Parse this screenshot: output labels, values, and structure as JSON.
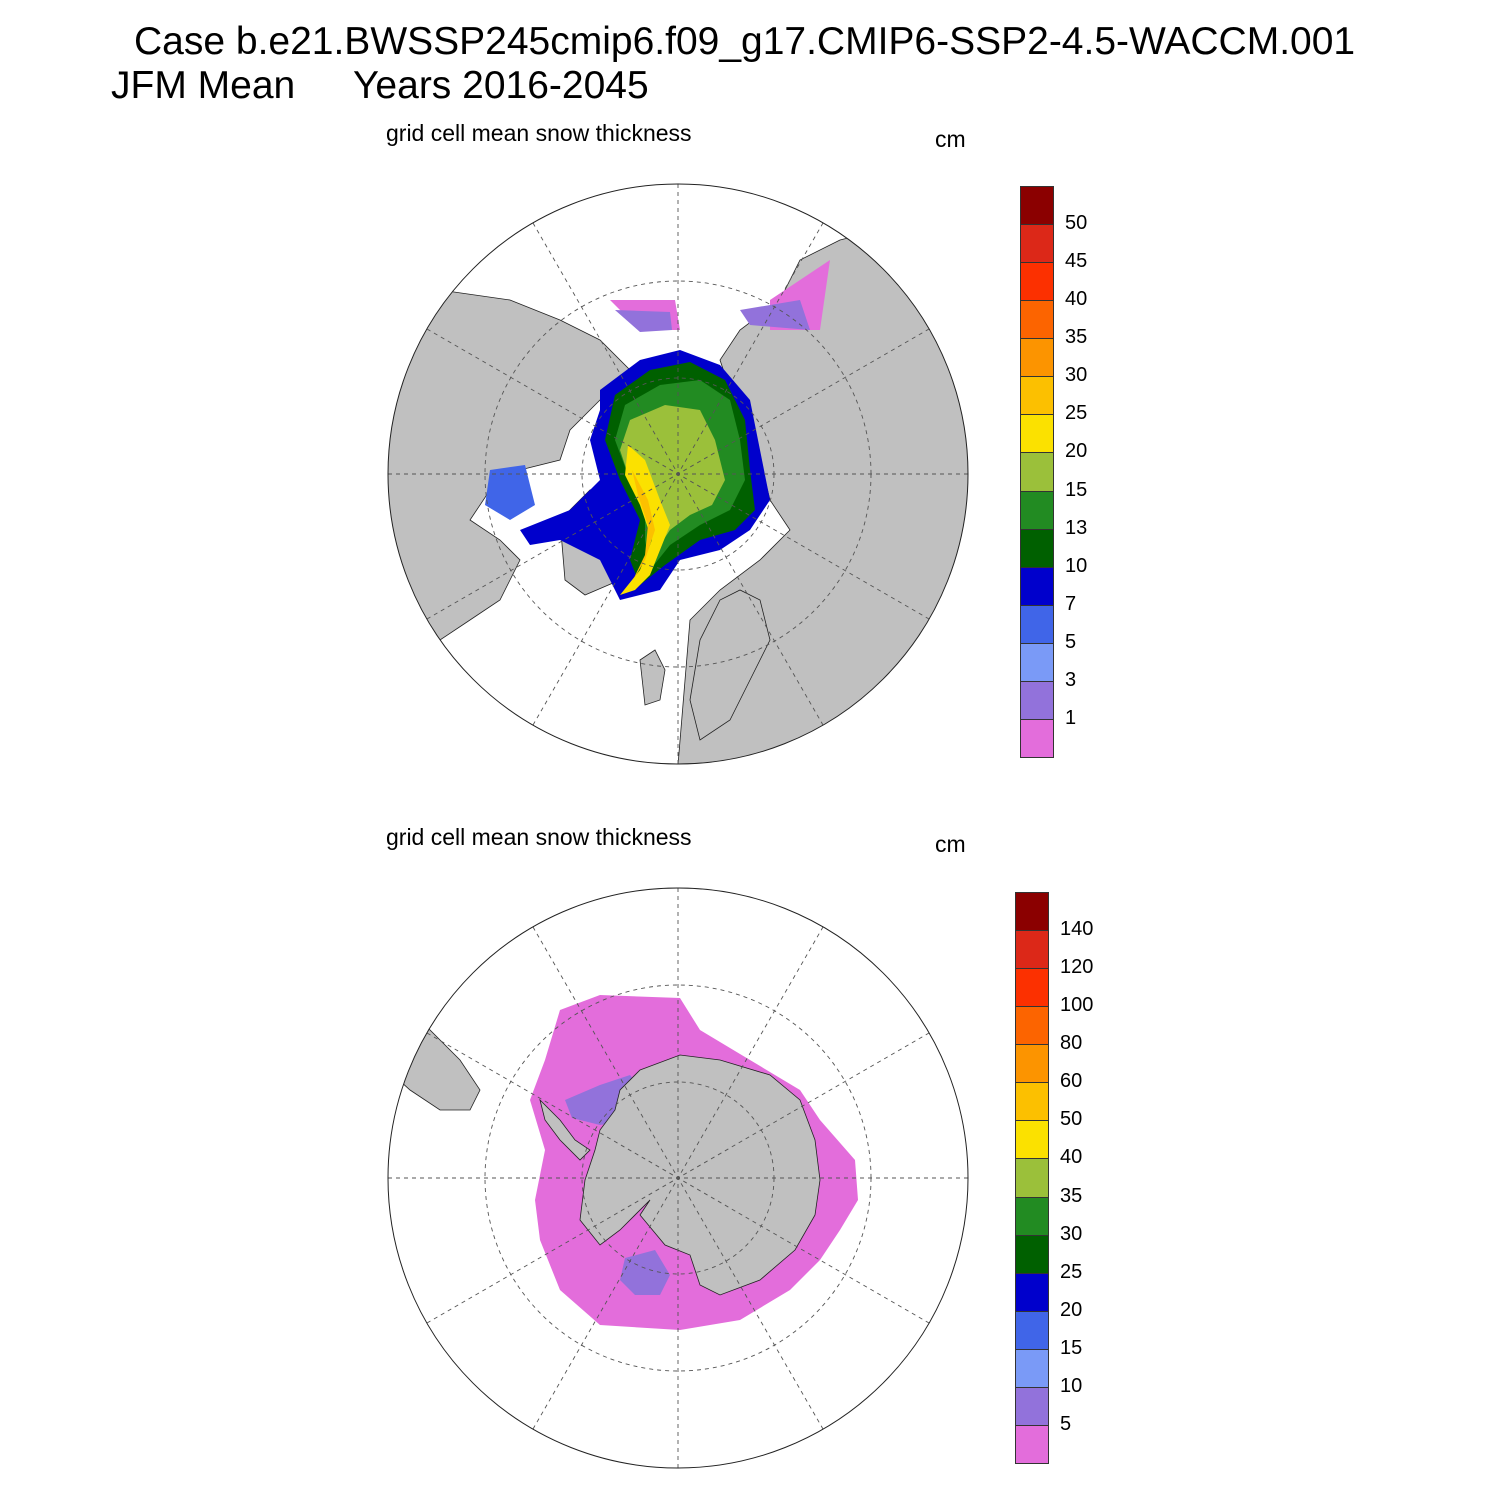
{
  "header": {
    "line1": "Case b.e21.BWSSP245cmip6.f09_g17.CMIP6-SSP2-4.5-WACCM.001",
    "line2_left": "JFM Mean",
    "line2_right": "Years 2016-2045"
  },
  "panels": [
    {
      "hemisphere": "north",
      "title": "grid cell mean snow thickness",
      "units": "cm",
      "colorbar": {
        "colors": [
          "#e36ddb",
          "#9272db",
          "#7a9af7",
          "#4065e8",
          "#0000cc",
          "#006000",
          "#228b22",
          "#9bc03a",
          "#fbe100",
          "#fcc000",
          "#fc9400",
          "#fc6400",
          "#fc3000",
          "#dc2818",
          "#8b0000"
        ],
        "labels": [
          "1",
          "3",
          "5",
          "7",
          "10",
          "13",
          "15",
          "20",
          "25",
          "30",
          "35",
          "40",
          "45",
          "50"
        ]
      }
    },
    {
      "hemisphere": "south",
      "title": "grid cell mean snow thickness",
      "units": "cm",
      "colorbar": {
        "colors": [
          "#e36ddb",
          "#9272db",
          "#7a9af7",
          "#4065e8",
          "#0000cc",
          "#006000",
          "#228b22",
          "#9bc03a",
          "#fbe100",
          "#fcc000",
          "#fc9400",
          "#fc6400",
          "#fc3000",
          "#dc2818",
          "#8b0000"
        ],
        "labels": [
          "5",
          "10",
          "15",
          "20",
          "25",
          "30",
          "35",
          "40",
          "50",
          "60",
          "80",
          "100",
          "120",
          "140"
        ]
      }
    }
  ],
  "colors": {
    "land": "#c0c0c0",
    "ocean": "#ffffff"
  }
}
